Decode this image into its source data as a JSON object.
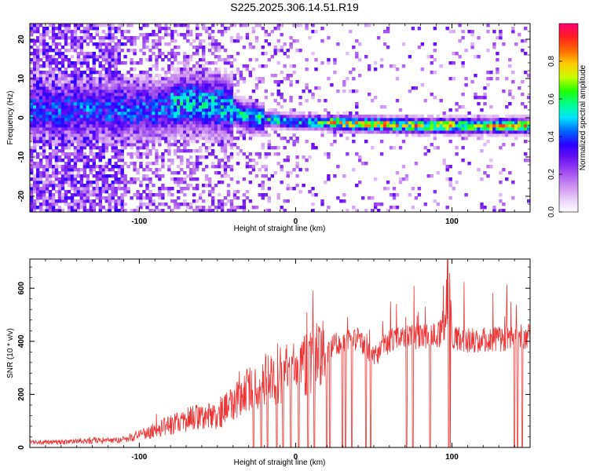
{
  "title": "S225.2025.306.14.51.R19",
  "colors": {
    "trace": "#f03333",
    "axis": "#000000",
    "plot_bg": "#ffffff"
  },
  "chart_data": [
    {
      "type": "heatmap",
      "xlabel": "Height of straight line (km)",
      "ylabel": "Frequency (Hz)",
      "xlim": [
        -170,
        150
      ],
      "ylim": [
        -24,
        24
      ],
      "x_ticks": [
        -100,
        0,
        100
      ],
      "y_ticks": [
        -20,
        -10,
        0,
        10,
        20
      ],
      "grid": false,
      "colorbar": {
        "label": "Normalized spectral amplitude",
        "range": [
          0,
          1
        ],
        "ticks": [
          0.0,
          0.2,
          0.4,
          0.6,
          0.8
        ],
        "colormap": [
          "#ffffff",
          "#e6ccf7",
          "#c98af0",
          "#a04bf0",
          "#6a12f2",
          "#2a00ff",
          "#0066ff",
          "#00e5ff",
          "#00ff8c",
          "#22ff00",
          "#c8ff00",
          "#ffcc00",
          "#ff6a00",
          "#ff1f1f",
          "#ff0077"
        ]
      },
      "ridge_frequency_hz": [
        {
          "x": -90,
          "f": 2
        },
        {
          "x": -70,
          "f": 4
        },
        {
          "x": -45,
          "f": 3
        },
        {
          "x": -30,
          "f": 0
        },
        {
          "x": 0,
          "f": -1
        },
        {
          "x": 40,
          "f": -1.5
        },
        {
          "x": 80,
          "f": -2
        },
        {
          "x": 148,
          "f": -2
        }
      ]
    },
    {
      "type": "line",
      "xlabel": "Height of straight line (km)",
      "ylabel": "SNR (10 * v/v)",
      "xlim": [
        -170,
        150
      ],
      "ylim": [
        0,
        710
      ],
      "x_ticks": [
        -100,
        0,
        100
      ],
      "y_ticks": [
        0,
        200,
        400,
        600
      ],
      "grid": false,
      "series": [
        {
          "x": [
            -170,
            -150,
            -130,
            -110,
            -100,
            -90,
            -80,
            -70,
            -60,
            -50,
            -40,
            -35,
            -30,
            -25,
            -20,
            -15,
            -10,
            -5,
            0,
            5,
            10,
            15,
            20,
            25,
            30,
            35,
            40,
            45,
            50,
            55,
            60,
            70,
            80,
            90,
            95,
            97,
            100,
            110,
            120,
            130,
            140,
            150
          ],
          "y": [
            20,
            20,
            25,
            30,
            45,
            65,
            85,
            105,
            115,
            125,
            165,
            190,
            220,
            240,
            255,
            265,
            270,
            280,
            290,
            310,
            330,
            345,
            360,
            385,
            400,
            405,
            410,
            380,
            340,
            370,
            405,
            410,
            415,
            420,
            440,
            500,
            410,
            405,
            405,
            410,
            415,
            420
          ]
        }
      ],
      "dropouts_x": [
        -27,
        -22,
        -18,
        -12,
        -8,
        -3,
        2,
        8,
        12,
        20,
        22,
        30,
        32,
        36,
        45,
        48,
        71,
        75,
        86,
        98,
        99,
        140,
        142,
        145
      ]
    }
  ]
}
